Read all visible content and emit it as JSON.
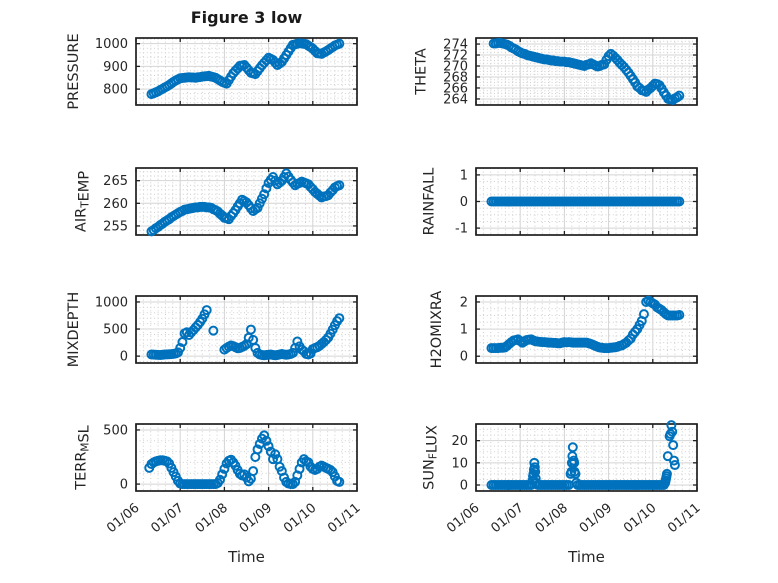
{
  "figure": {
    "title": "Figure 3 low",
    "xlabel": "Time",
    "colors": {
      "marker": "#0072BD",
      "axis": "#1f1f1f",
      "tick_text": "#262626",
      "major_grid": "#d4d4d4",
      "minor_grid": "#cfcfcf"
    }
  },
  "chart_data": [
    {
      "type": "scatter",
      "name": "pressure",
      "row": 0,
      "col": 0,
      "ylabel": "PRESSURE",
      "ylim": [
        730,
        1025
      ],
      "yticks": [
        800,
        900,
        1000
      ],
      "yminor": 20,
      "xlim": [
        6,
        11
      ],
      "xticks": [
        6,
        7,
        8,
        9,
        10,
        11
      ],
      "xticklabels": [
        "01/06",
        "01/07",
        "01/08",
        "01/09",
        "01/10",
        "01/11"
      ],
      "show_xticklabels": false,
      "xminor": 0.1667,
      "segments": [
        {
          "x0": 6.35,
          "dx": 0.05,
          "y": [
            778,
            782,
            786,
            790,
            796,
            801,
            807,
            812,
            818,
            825,
            832,
            838,
            843,
            848,
            849,
            850,
            851,
            852,
            851,
            851,
            850,
            852,
            853,
            855,
            856,
            857,
            858,
            855,
            853,
            850,
            844,
            838,
            832,
            828,
            824,
            839,
            855,
            870,
            881,
            891,
            902,
            904,
            906,
            895,
            883,
            872,
            869,
            866,
            879,
            892,
            905,
            916,
            927,
            938,
            933,
            928,
            917,
            906,
            913,
            920,
            935,
            950,
            965,
            980,
            995,
            997,
            1000,
            1002,
            1001,
            999,
            998,
            991,
            985,
            978,
            968,
            958,
            957,
            955,
            961,
            966,
            972,
            979,
            985,
            992,
            996,
            1000
          ]
        }
      ]
    },
    {
      "type": "scatter",
      "name": "theta",
      "row": 0,
      "col": 1,
      "ylabel": "THETA",
      "ylim": [
        262.9,
        275.1
      ],
      "yticks": [
        264,
        266,
        268,
        270,
        272,
        274
      ],
      "yminor": 0.5,
      "xlim": [
        6,
        11
      ],
      "xticks": [
        6,
        7,
        8,
        9,
        10,
        11
      ],
      "xticklabels": [
        "01/06",
        "01/07",
        "01/08",
        "01/09",
        "01/10",
        "01/11"
      ],
      "show_xticklabels": false,
      "xminor": 0.1667,
      "segments": [
        {
          "x0": 6.4,
          "dx": 0.05,
          "y": [
            274.1,
            274.1,
            274.2,
            274.2,
            274.1,
            274.0,
            273.9,
            273.7,
            273.4,
            273.2,
            273.0,
            272.7,
            272.5,
            272.3,
            272.2,
            272.0,
            271.9,
            271.8,
            271.7,
            271.6,
            271.5,
            271.4,
            271.3,
            271.2,
            271.2,
            271.1,
            271.0,
            271.0,
            270.9,
            270.9,
            270.8,
            270.8,
            270.8,
            270.7,
            270.7,
            270.6,
            270.5,
            270.4,
            270.3,
            270.2,
            270.1,
            270.0,
            270.2,
            270.3,
            270.5,
            270.3,
            270.1,
            269.9,
            270.0,
            270.2,
            270.3,
            271.1,
            271.8,
            272.2,
            271.9,
            271.5,
            271.1,
            270.6,
            270.2,
            269.8,
            269.3,
            268.8,
            268.2,
            267.6,
            267.0,
            266.3,
            266.0,
            265.6,
            265.5,
            265.3,
            265.7,
            266.0,
            266.4,
            266.8,
            266.7,
            266.5,
            265.9,
            265.2,
            264.6,
            264.0,
            263.9,
            263.8,
            264.1,
            264.3,
            264.6
          ]
        }
      ]
    },
    {
      "type": "scatter",
      "name": "air_temp",
      "row": 1,
      "col": 0,
      "ylabel": "AIR_{T}EMP",
      "ylim": [
        253.0,
        267.8
      ],
      "yticks": [
        255,
        260,
        265
      ],
      "yminor": 1,
      "xlim": [
        6,
        11
      ],
      "xticks": [
        6,
        7,
        8,
        9,
        10,
        11
      ],
      "xticklabels": [
        "01/06",
        "01/07",
        "01/08",
        "01/09",
        "01/10",
        "01/11"
      ],
      "show_xticklabels": false,
      "xminor": 0.1667,
      "segments": [
        {
          "x0": 6.35,
          "dx": 0.05,
          "y": [
            253.8,
            254.1,
            254.5,
            254.8,
            255.2,
            255.5,
            255.9,
            256.2,
            256.5,
            256.9,
            257.2,
            257.5,
            257.8,
            258.1,
            258.3,
            258.6,
            258.7,
            258.8,
            258.9,
            259.0,
            259.1,
            259.1,
            259.2,
            259.2,
            259.2,
            259.1,
            259.1,
            259.0,
            258.7,
            258.5,
            258.2,
            257.7,
            257.3,
            256.8,
            256.7,
            256.5,
            257.2,
            257.8,
            258.5,
            259.3,
            260.0,
            260.8,
            260.5,
            260.2,
            259.6,
            258.9,
            258.3,
            258.7,
            259.0,
            260.0,
            261.0,
            262.0,
            263.3,
            264.5,
            265.2,
            265.8,
            265.0,
            264.2,
            264.6,
            265.0,
            265.8,
            266.6,
            265.9,
            265.2,
            264.6,
            264.0,
            264.3,
            264.5,
            264.8,
            264.6,
            264.4,
            264.2,
            263.6,
            263.1,
            262.5,
            262.1,
            261.7,
            261.3,
            261.5,
            261.6,
            261.8,
            262.4,
            262.9,
            263.5,
            263.8,
            264.0
          ]
        }
      ]
    },
    {
      "type": "scatter",
      "name": "rainfall",
      "row": 1,
      "col": 1,
      "ylabel": "RAINFALL",
      "ylim": [
        -1.26,
        1.26
      ],
      "yticks": [
        -1,
        0,
        1
      ],
      "yminor": 0.25,
      "xlim": [
        6,
        11
      ],
      "xticks": [
        6,
        7,
        8,
        9,
        10,
        11
      ],
      "xticklabels": [
        "01/06",
        "01/07",
        "01/08",
        "01/09",
        "01/10",
        "01/11"
      ],
      "show_xticklabels": false,
      "xminor": 0.1667,
      "segments": [
        {
          "x0": 6.35,
          "dx": 0.05,
          "y": [
            0,
            0,
            0,
            0,
            0,
            0,
            0,
            0,
            0,
            0,
            0,
            0,
            0,
            0,
            0,
            0,
            0,
            0,
            0,
            0,
            0,
            0,
            0,
            0,
            0,
            0,
            0,
            0,
            0,
            0,
            0,
            0,
            0,
            0,
            0,
            0,
            0,
            0,
            0,
            0,
            0,
            0,
            0,
            0,
            0,
            0,
            0,
            0,
            0,
            0,
            0,
            0,
            0,
            0,
            0,
            0,
            0,
            0,
            0,
            0,
            0,
            0,
            0,
            0,
            0,
            0,
            0,
            0,
            0,
            0,
            0,
            0,
            0,
            0,
            0,
            0,
            0,
            0,
            0,
            0,
            0,
            0,
            0,
            0,
            0,
            0
          ]
        }
      ]
    },
    {
      "type": "scatter",
      "name": "mixdepth",
      "row": 2,
      "col": 0,
      "ylabel": "MIXDEPTH",
      "ylim": [
        -127,
        1110
      ],
      "yticks": [
        0,
        500,
        1000
      ],
      "yminor": 100,
      "xlim": [
        6,
        11
      ],
      "xticks": [
        6,
        7,
        8,
        9,
        10,
        11
      ],
      "xticklabels": [
        "01/06",
        "01/07",
        "01/08",
        "01/09",
        "01/10",
        "01/11"
      ],
      "show_xticklabels": false,
      "xminor": 0.1667,
      "segments": [
        {
          "x0": 6.35,
          "dx": 0.05,
          "y": [
            30,
            28,
            25,
            22,
            20,
            25,
            30,
            32,
            35,
            38,
            42,
            50,
            70,
            150,
            260,
            420,
            440,
            390,
            440,
            480,
            530,
            575,
            630,
            690,
            770,
            850,
            null,
            null,
            470,
            null,
            null,
            null,
            null,
            120,
            150,
            175,
            195,
            185,
            165,
            145,
            150,
            170,
            190,
            220,
            340,
            490,
            300,
            150,
            60,
            30,
            20,
            15,
            20,
            25,
            30,
            20,
            15,
            20,
            30,
            40,
            30,
            25,
            30,
            40,
            60,
            150,
            270,
            180,
            120,
            90,
            40,
            30,
            50,
            130,
            150,
            165,
            190,
            225,
            260,
            300,
            345,
            415,
            490,
            570,
            645,
            700
          ]
        }
      ]
    },
    {
      "type": "scatter",
      "name": "h2omixra",
      "row": 2,
      "col": 1,
      "ylabel": "H2OMIXRA",
      "ylim": [
        -0.25,
        2.22
      ],
      "yticks": [
        0,
        1,
        2
      ],
      "yminor": 0.25,
      "xlim": [
        6,
        11
      ],
      "xticks": [
        6,
        7,
        8,
        9,
        10,
        11
      ],
      "xticklabels": [
        "01/06",
        "01/07",
        "01/08",
        "01/09",
        "01/10",
        "01/11"
      ],
      "show_xticklabels": false,
      "xminor": 0.1667,
      "segments": [
        {
          "x0": 6.35,
          "dx": 0.05,
          "y": [
            0.3,
            0.3,
            0.3,
            0.3,
            0.31,
            0.31,
            0.32,
            0.38,
            0.45,
            0.52,
            0.58,
            0.6,
            0.62,
            0.56,
            0.5,
            0.55,
            0.6,
            0.61,
            0.62,
            0.58,
            0.55,
            0.54,
            0.53,
            0.52,
            0.52,
            0.51,
            0.5,
            0.5,
            0.49,
            0.49,
            0.48,
            0.48,
            0.5,
            0.52,
            0.51,
            0.52,
            0.51,
            0.5,
            0.5,
            0.5,
            0.5,
            0.5,
            0.5,
            0.5,
            0.48,
            0.45,
            0.42,
            0.38,
            0.35,
            0.32,
            0.31,
            0.3,
            0.3,
            0.3,
            0.31,
            0.32,
            0.33,
            0.35,
            0.38,
            0.4,
            0.45,
            0.5,
            0.58,
            0.65,
            0.8,
            0.9,
            1.0,
            1.15,
            1.3,
            1.55,
            2.0,
            2.05,
            2.0,
            1.95,
            1.9,
            1.8,
            1.75,
            1.7,
            1.62,
            1.55,
            1.5,
            1.5,
            1.5,
            1.5,
            1.5,
            1.52
          ]
        }
      ]
    },
    {
      "type": "scatter",
      "name": "terr_msl",
      "row": 3,
      "col": 0,
      "ylabel": "TERR_{M}SL",
      "ylim": [
        -64,
        555
      ],
      "yticks": [
        0,
        500
      ],
      "yminor": 100,
      "xlim": [
        6,
        11
      ],
      "xticks": [
        6,
        7,
        8,
        9,
        10,
        11
      ],
      "xticklabels": [
        "01/06",
        "01/07",
        "01/08",
        "01/09",
        "01/10",
        "01/11"
      ],
      "show_xticklabels": true,
      "xminor": 0.1667,
      "segments": [
        {
          "x0": 6.3,
          "dx": 0.05,
          "y": [
            150,
            185,
            200,
            210,
            215,
            220,
            220,
            215,
            210,
            190,
            150,
            110,
            70,
            30,
            5,
            0,
            0,
            0,
            0,
            0,
            0,
            0,
            0,
            0,
            0,
            0,
            0,
            0,
            0,
            0,
            0,
            10,
            40,
            90,
            140,
            190,
            215,
            225,
            200,
            170,
            130,
            95,
            80,
            90,
            60,
            25,
            50,
            120,
            250,
            320,
            370,
            420,
            450,
            400,
            350,
            300,
            230,
            275,
            230,
            160,
            120,
            60,
            20,
            5,
            0,
            0,
            20,
            80,
            140,
            200,
            230,
            210,
            200,
            160,
            140,
            130,
            140,
            160,
            170,
            160,
            150,
            140,
            130,
            110,
            70,
            30,
            20
          ]
        }
      ]
    },
    {
      "type": "scatter",
      "name": "sun_flux",
      "row": 3,
      "col": 1,
      "ylabel": "SUN_{F}LUX",
      "ylim": [
        -2.7,
        27.5
      ],
      "yticks": [
        0,
        10,
        20
      ],
      "yminor": 2.5,
      "xlim": [
        6,
        11
      ],
      "xticks": [
        6,
        7,
        8,
        9,
        10,
        11
      ],
      "xticklabels": [
        "01/06",
        "01/07",
        "01/08",
        "01/09",
        "01/10",
        "01/11"
      ],
      "show_xticklabels": true,
      "xminor": 0.1667,
      "segments": [
        {
          "x0": 6.35,
          "dx": 0.05,
          "y": [
            0,
            0,
            0,
            0,
            0,
            0,
            0,
            0,
            0,
            0,
            0,
            0,
            0,
            0,
            0,
            0,
            0,
            0,
            0,
            null,
            null,
            0,
            0,
            0,
            0,
            0,
            0,
            0,
            0,
            0,
            0,
            0,
            0,
            0,
            0,
            0,
            null,
            null,
            null,
            0,
            0,
            0,
            0,
            0,
            0,
            0,
            0,
            0,
            0,
            0,
            0,
            0,
            0,
            0,
            0,
            0,
            0,
            0,
            0,
            0,
            0,
            0,
            0,
            0,
            0,
            0,
            0,
            0,
            0,
            0,
            0,
            0,
            0,
            0,
            0,
            0,
            0,
            0,
            0
          ]
        },
        {
          "points": [
            [
              7.28,
              2
            ],
            [
              7.29,
              4
            ],
            [
              7.3,
              5
            ],
            [
              7.31,
              7
            ],
            [
              7.32,
              10
            ],
            [
              7.33,
              8
            ],
            [
              7.34,
              6
            ],
            [
              7.35,
              3
            ],
            [
              7.36,
              1
            ],
            [
              8.14,
              5
            ],
            [
              8.16,
              6
            ],
            [
              8.17,
              10
            ],
            [
              8.18,
              13
            ],
            [
              8.19,
              17
            ],
            [
              8.21,
              11
            ],
            [
              8.22,
              10
            ],
            [
              8.23,
              6
            ],
            [
              8.25,
              5
            ],
            [
              8.27,
              1
            ],
            [
              10.28,
              1
            ],
            [
              10.29,
              2
            ],
            [
              10.3,
              3
            ],
            [
              10.31,
              4
            ],
            [
              10.32,
              5
            ],
            [
              10.34,
              13
            ],
            [
              10.38,
              22
            ],
            [
              10.4,
              23
            ],
            [
              10.42,
              27
            ],
            [
              10.44,
              24
            ],
            [
              10.46,
              18
            ],
            [
              10.48,
              11
            ],
            [
              10.5,
              9
            ]
          ]
        }
      ]
    }
  ]
}
